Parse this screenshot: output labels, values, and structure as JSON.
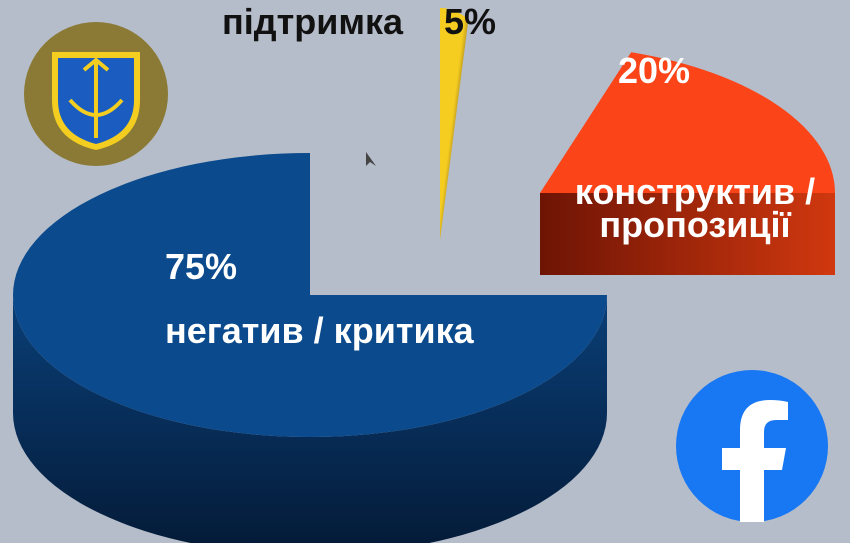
{
  "chart_data": {
    "type": "pie",
    "categories": [
      "негатив / критика",
      "конструктив /пропозиції",
      "підтримка"
    ],
    "values": [
      75,
      20,
      5
    ],
    "value_labels": [
      "75%",
      "20%",
      "5%"
    ],
    "colors": [
      "#0b4a8c",
      "#fb4418",
      "#f2c622"
    ]
  }
}
